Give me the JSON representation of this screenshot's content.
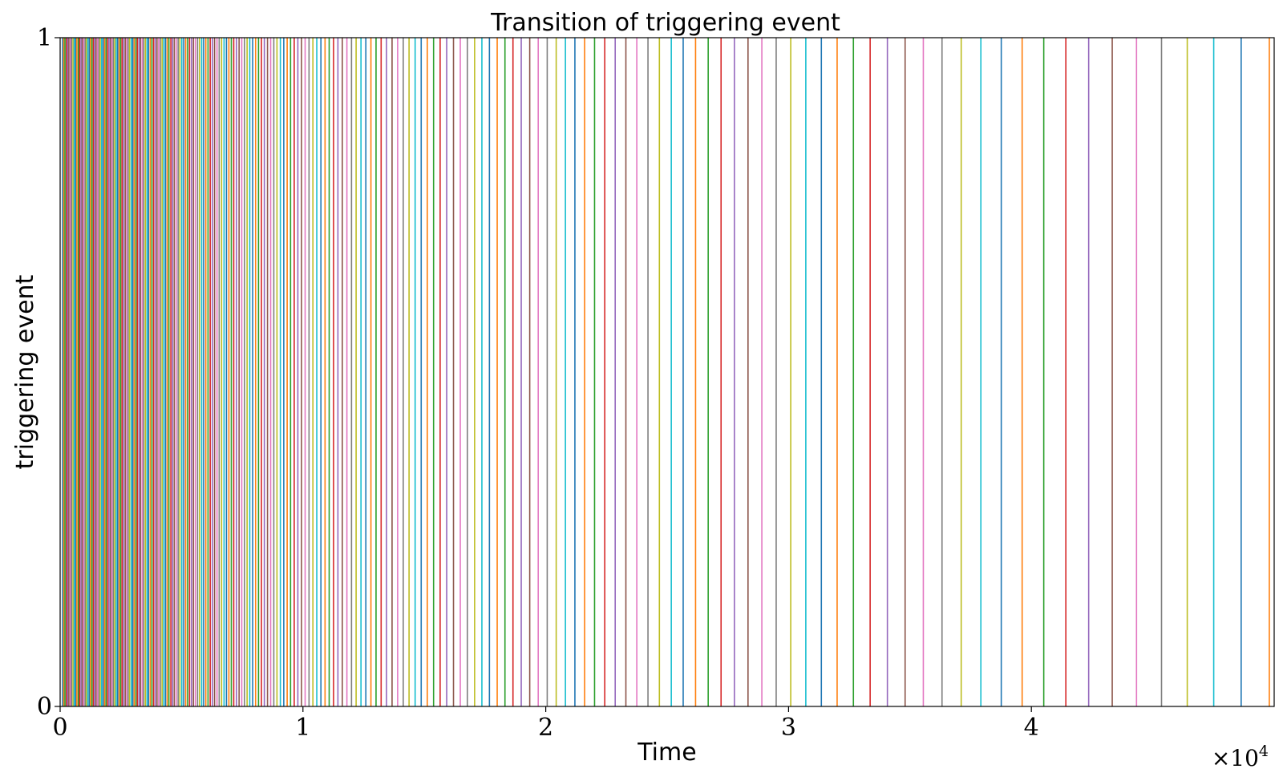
{
  "chart_data": {
    "type": "line",
    "title": "Transition of triggering event",
    "xlabel": "Time",
    "ylabel": "triggering event",
    "xlim": [
      0,
      50000
    ],
    "ylim": [
      0,
      1
    ],
    "x_tick_values": [
      0,
      10000,
      20000,
      30000,
      40000
    ],
    "x_tick_labels": [
      "0",
      "1",
      "2",
      "3",
      "4"
    ],
    "y_tick_values": [
      0,
      1
    ],
    "y_tick_labels": [
      "0",
      "1"
    ],
    "x_offset_label": "×10",
    "x_offset_exponent": "4",
    "grid": false,
    "colors": [
      "#1f77b4",
      "#ff7f0e",
      "#2ca02c",
      "#d62728",
      "#9467bd",
      "#8c564b",
      "#e377c2",
      "#7f7f7f",
      "#bcbd22",
      "#17becf"
    ],
    "event_times": [
      100,
      150,
      200,
      260,
      310,
      360,
      420,
      470,
      530,
      580,
      640,
      690,
      750,
      800,
      860,
      910,
      970,
      1030,
      1080,
      1140,
      1200,
      1250,
      1310,
      1370,
      1420,
      1480,
      1540,
      1600,
      1650,
      1710,
      1770,
      1830,
      1890,
      1950,
      2010,
      2070,
      2130,
      2190,
      2250,
      2310,
      2370,
      2430,
      2490,
      2550,
      2610,
      2680,
      2740,
      2800,
      2860,
      2930,
      2990,
      3050,
      3120,
      3180,
      3250,
      3310,
      3380,
      3440,
      3510,
      3580,
      3640,
      3710,
      3780,
      3850,
      3920,
      3990,
      4060,
      4130,
      4200,
      4270,
      4340,
      4410,
      4480,
      4560,
      4630,
      4700,
      4780,
      4860,
      4930,
      5010,
      5090,
      5170,
      5250,
      5330,
      5410,
      5490,
      5570,
      5660,
      5740,
      5830,
      5910,
      6000,
      6090,
      6180,
      6270,
      6360,
      6460,
      6550,
      6650,
      6750,
      6850,
      6950,
      7050,
      7150,
      7260,
      7370,
      7480,
      7590,
      7700,
      7810,
      7930,
      8050,
      8170,
      8290,
      8410,
      8540,
      8670,
      8800,
      8930,
      9070,
      9210,
      9350,
      9490,
      9640,
      9790,
      9940,
      10090,
      10250,
      10410,
      10570,
      10740,
      10910,
      11080,
      11260,
      11440,
      11620,
      11810,
      12000,
      12190,
      12390,
      12590,
      12800,
      13010,
      13220,
      13440,
      13670,
      13900,
      14130,
      14370,
      14620,
      14870,
      15120,
      15380,
      15650,
      15920,
      16200,
      16480,
      16770,
      17070,
      17370,
      17680,
      18000,
      18320,
      18650,
      18990,
      19340,
      19690,
      20060,
      20430,
      20810,
      21200,
      21600,
      22010,
      22430,
      22860,
      23300,
      23750,
      24210,
      24680,
      25170,
      25660,
      26170,
      26690,
      27220,
      27770,
      28330,
      28900,
      29490,
      30090,
      30710,
      31350,
      32000,
      32670,
      33360,
      34070,
      34800,
      35550,
      36320,
      37110,
      37920,
      38760,
      39620,
      40510,
      41420,
      42360,
      43330,
      44330,
      45360,
      46420,
      47510,
      48640,
      49800
    ]
  }
}
